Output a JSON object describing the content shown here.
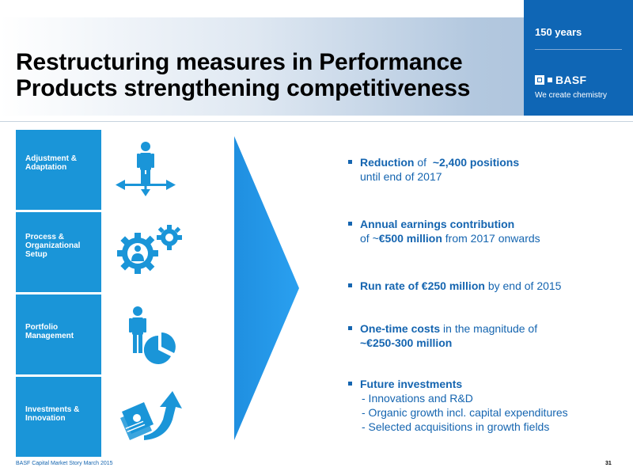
{
  "header": {
    "title_line1": "Restructuring measures in Performance",
    "title_line2": "Products strengthening competitiveness",
    "years": "150 years",
    "brand": "BASF",
    "tagline": "We create chemistry"
  },
  "pillars": [
    {
      "line1": "Adjustment &",
      "line2": "Adaptation",
      "line3": "",
      "icon": "person-arrows-icon"
    },
    {
      "line1": "Process &",
      "line2": "Organizational",
      "line3": "Setup",
      "icon": "gears-person-icon"
    },
    {
      "line1": "Portfolio",
      "line2": "Management",
      "line3": "",
      "icon": "person-pie-chart-icon"
    },
    {
      "line1": "Investments &",
      "line2": "Innovation",
      "line3": "",
      "icon": "money-arrow-icon"
    }
  ],
  "bullets": [
    {
      "bold": "Reduction",
      "text1": " of  ",
      "bold2": "~2,400 positions",
      "line2": "until end of 2017"
    },
    {
      "bold": "Annual earnings contribution",
      "line2_pre": "of ~",
      "line2_bold": "€500 million",
      "line2_post": " from 2017 onwards"
    },
    {
      "bold": "Run rate of €250 million",
      "text1": " by end of 2015"
    },
    {
      "bold": "One-time costs",
      "text1": " in the magnitude of",
      "line2_bold": "~€250-300 million"
    },
    {
      "bold": "Future investments",
      "subs": [
        "- Innovations and R&D",
        "- Organic growth incl. capital expenditures",
        "- Selected acquisitions in growth fields"
      ]
    }
  ],
  "footer": {
    "text": "BASF Capital Market Story March 2015",
    "page": "31"
  },
  "colors": {
    "brand_blue": "#0f66b5",
    "box_blue": "#1a95d8",
    "text_blue": "#1565b0",
    "arrow_blue": "#2196e8"
  }
}
